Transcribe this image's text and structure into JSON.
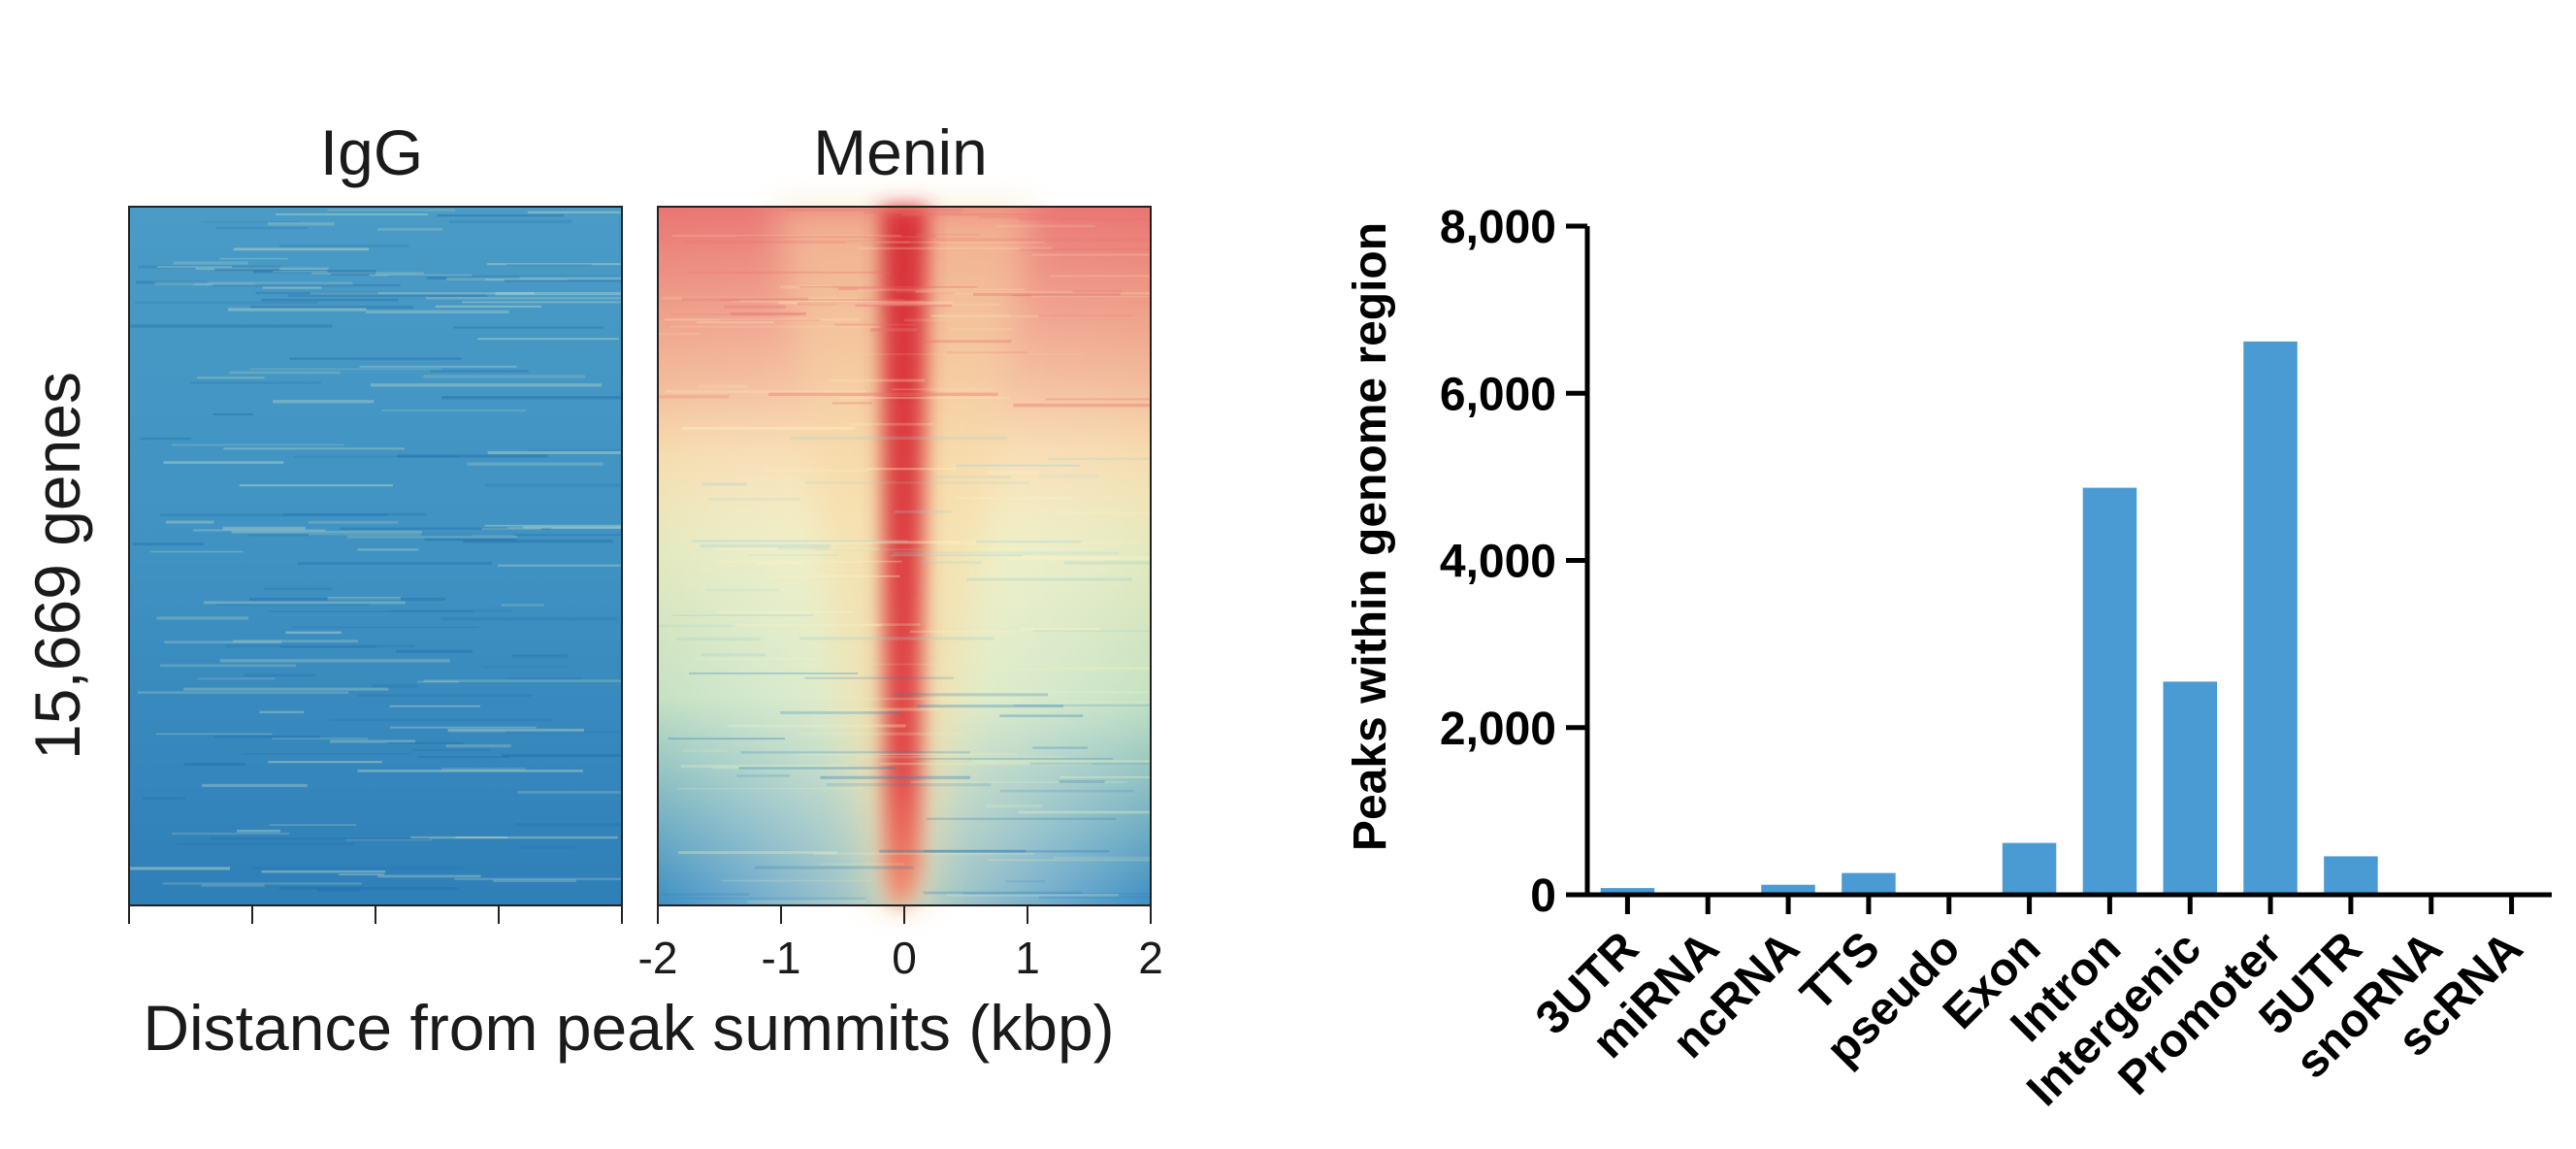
{
  "chart_data": [
    {
      "type": "heatmap",
      "panels": [
        {
          "title": "IgG",
          "signal": "low-uniform"
        },
        {
          "title": "Menin",
          "signal": "centered-peak"
        }
      ],
      "ylabel": "15,669 genes",
      "xlabel": "Distance from peak summits (kbp)",
      "x_ticks": [
        "-2",
        "-1",
        "0",
        "1",
        "2"
      ],
      "xlim": [
        -2,
        2
      ],
      "colors": {
        "low": "#2b7bb9",
        "mid": "#ffffbf",
        "high": "#d7191c"
      }
    },
    {
      "type": "bar",
      "categories": [
        "3UTR",
        "miRNA",
        "ncRNA",
        "TTS",
        "pseudo",
        "Exon",
        "Intron",
        "Intergenic",
        "Promoter",
        "5UTR",
        "snoRNA",
        "scRNA"
      ],
      "values": [
        80,
        0,
        120,
        260,
        0,
        620,
        4870,
        2550,
        6620,
        460,
        0,
        0
      ],
      "ylabel": "Peaks within genome region",
      "y_ticks": [
        "0",
        "2,000",
        "4,000",
        "6,000",
        "8,000"
      ],
      "ylim": [
        0,
        8000
      ],
      "bar_color": "#4a9bd4"
    }
  ]
}
